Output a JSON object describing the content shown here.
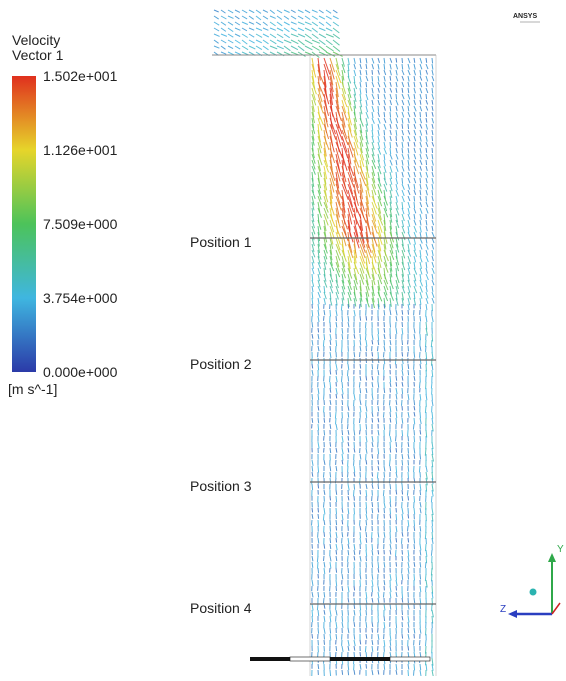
{
  "legend": {
    "title": [
      "Velocity",
      "Vector 1"
    ],
    "ticks": [
      "1.502e+001",
      "1.126e+001",
      "7.509e+000",
      "3.754e+000",
      "0.000e+000"
    ],
    "unit": "[m s^-1]"
  },
  "positions": [
    "Position 1",
    "Position 2",
    "Position 3",
    "Position 4"
  ],
  "logo": "ANSYS",
  "axes": [
    "Y",
    "Z"
  ]
}
